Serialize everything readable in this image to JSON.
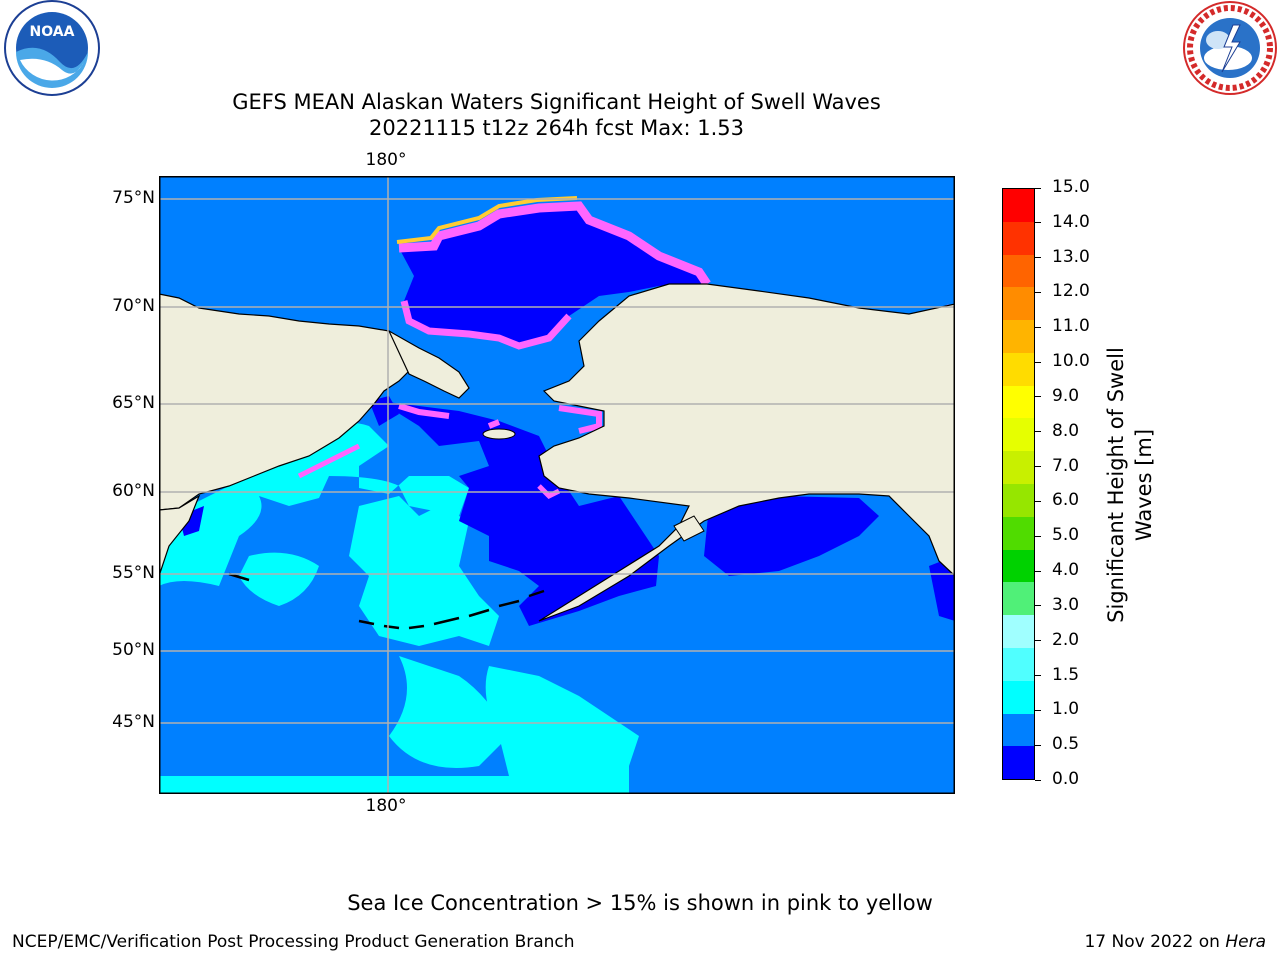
{
  "header": {
    "title_line1": "GEFS MEAN Alaskan Waters Significant Height of Swell Waves",
    "title_line2": "20221115 t12z 264h fcst   Max: 1.53"
  },
  "logos": {
    "left": {
      "icon": "noaa-logo-icon",
      "text": "NOAA"
    },
    "right": {
      "icon": "national-weather-service-logo-icon",
      "text": "NATIONAL WEATHER SERVICE"
    }
  },
  "map": {
    "lat_labels": [
      "75°N",
      "70°N",
      "65°N",
      "60°N",
      "55°N",
      "50°N",
      "45°N"
    ],
    "lon_label_top": "180°",
    "lon_label_bottom": "180°",
    "land_color": "#efeedc",
    "ocean_base_color": "#0080ff",
    "gridline_color": "#b0b0b0"
  },
  "colorbar": {
    "title_line1": "Significant Height of Swell",
    "title_line2": "Waves [m]",
    "ticks": [
      "15.0",
      "14.0",
      "13.0",
      "12.0",
      "11.0",
      "10.0",
      "9.0",
      "8.0",
      "7.0",
      "6.0",
      "5.0",
      "4.0",
      "3.0",
      "2.0",
      "1.5",
      "1.0",
      "0.5",
      "0.0"
    ],
    "colors_top_to_bottom": [
      "#ff0000",
      "#ff3200",
      "#ff6400",
      "#ff8c00",
      "#ffb400",
      "#ffdc00",
      "#ffff00",
      "#e6ff00",
      "#c8f000",
      "#96e600",
      "#50dc00",
      "#00d200",
      "#50f078",
      "#a0ffff",
      "#50ffff",
      "#00ffff",
      "#0080ff",
      "#0000ff"
    ]
  },
  "notes": {
    "sea_ice": "Sea Ice Concentration > 15% is shown in pink to yellow"
  },
  "footer": {
    "left": "NCEP/EMC/Verification Post Processing Product Generation Branch",
    "right_prefix": "17 Nov 2022 on ",
    "right_host": "Hera"
  }
}
